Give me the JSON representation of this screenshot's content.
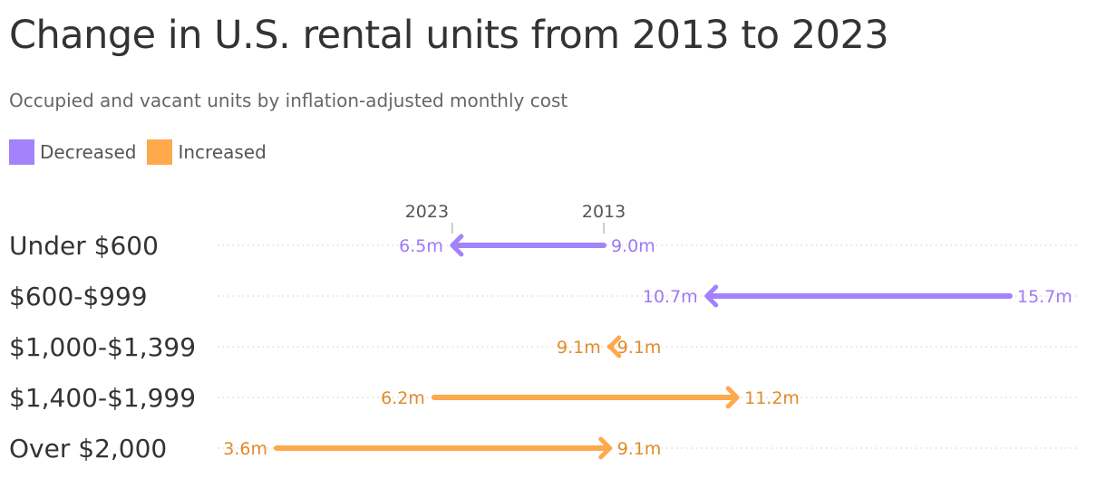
{
  "title": "Change in U.S. rental units from 2013 to 2023",
  "subtitle": "Occupied and vacant units by inflation-adjusted monthly cost",
  "legend": [
    {
      "label": "Decreased",
      "color": "#a383fb"
    },
    {
      "label": "Increased",
      "color": "#ffa94d"
    }
  ],
  "colors": {
    "decreased": "#a383fb",
    "decreased_label": "#9b7af7",
    "increased": "#ffa94d",
    "increased_label": "#e08a2a",
    "category_text": "#333333",
    "grid": "#cccccc"
  },
  "chart_data": {
    "type": "arrow-dot-plot",
    "unit": "m",
    "year_labels": {
      "start": "2013",
      "end": "2023"
    },
    "xlim": [
      3.6,
      15.7
    ],
    "categories": [
      "Under $600",
      "$600-$999",
      "$1,000-$1,399",
      "$1,400-$1,999",
      "Over $2,000"
    ],
    "series": [
      {
        "name": "2013",
        "values": [
          9.0,
          15.7,
          9.1,
          6.2,
          3.6
        ]
      },
      {
        "name": "2023",
        "values": [
          6.5,
          10.7,
          9.1,
          11.2,
          9.1
        ]
      }
    ],
    "start_labels": [
      "9.0m",
      "15.7m",
      "9.1m",
      "6.2m",
      "3.6m"
    ],
    "end_labels": [
      "6.5m",
      "10.7m",
      "9.1m",
      "11.2m",
      "9.1m"
    ]
  }
}
